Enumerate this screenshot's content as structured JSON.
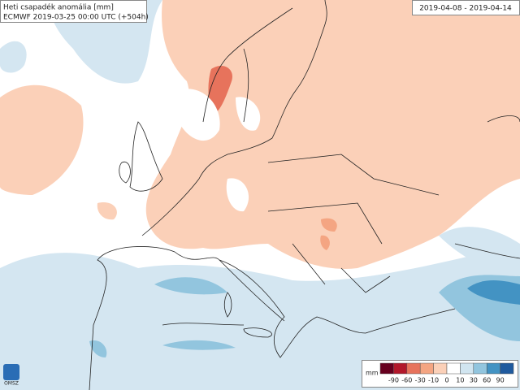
{
  "header": {
    "title": "Heti csapadék anomália [mm]",
    "subtitle": "ECMWF 2019-03-25 00:00 UTC (+504h)",
    "period": "2019-04-08 - 2019-04-14"
  },
  "legend": {
    "unit": "mm",
    "ticks": [
      -90,
      -60,
      -30,
      -10,
      0,
      10,
      30,
      60,
      90
    ],
    "colors": [
      "#67001f",
      "#b2182b",
      "#e7735c",
      "#f4a582",
      "#fbd0b8",
      "#ffffff",
      "#d1e5f0",
      "#92c5de",
      "#4393c3",
      "#1f5a9e"
    ]
  },
  "logo": {
    "text": "OMSZ"
  }
}
